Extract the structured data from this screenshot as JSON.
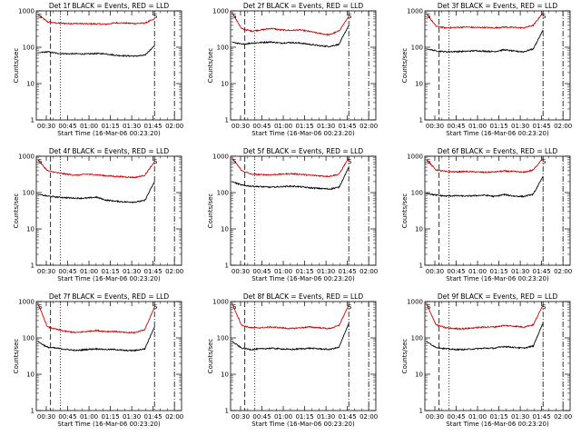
{
  "chart_data": [
    {
      "type": "line",
      "title": "Det 1f BLACK = Events, RED = LLD",
      "xlabel": "Start Time (16-Mar-06 00:23:20)",
      "ylabel": "Counts/sec",
      "yscale": "log",
      "ylim": [
        1,
        1000
      ],
      "x_ticks": [
        "00:30",
        "00:45",
        "01:00",
        "01:15",
        "01:30",
        "01:45",
        "02:00"
      ],
      "y_ticks": [
        "1",
        "10",
        "100",
        "1000"
      ],
      "markers": [
        "S",
        "S"
      ],
      "series": [
        {
          "color": "#d40000",
          "x_range": [
            "00:24",
            "01:46"
          ],
          "values": [
            800,
            500,
            460,
            450,
            450,
            440,
            440,
            430,
            470,
            460,
            450,
            460,
            600
          ]
        },
        {
          "color": "#000000",
          "x_range": [
            "00:24",
            "01:46"
          ],
          "values": [
            70,
            75,
            68,
            66,
            66,
            65,
            67,
            66,
            60,
            58,
            57,
            60,
            110
          ]
        }
      ]
    },
    {
      "type": "line",
      "title": "Det 2f BLACK = Events, RED = LLD",
      "xlabel": "Start Time (16-Mar-06 00:23:20)",
      "ylabel": "Counts/sec",
      "yscale": "log",
      "ylim": [
        1,
        1000
      ],
      "x_ticks": [
        "00:30",
        "00:45",
        "01:00",
        "01:15",
        "01:30",
        "01:45",
        "02:00"
      ],
      "y_ticks": [
        "1",
        "10",
        "100",
        "1000"
      ],
      "markers": [
        "S",
        "S"
      ],
      "series": [
        {
          "color": "#d40000",
          "x_range": [
            "00:24",
            "01:46"
          ],
          "values": [
            900,
            320,
            280,
            300,
            330,
            300,
            290,
            300,
            270,
            240,
            220,
            280,
            700
          ]
        },
        {
          "color": "#000000",
          "x_range": [
            "00:24",
            "01:46"
          ],
          "values": [
            140,
            120,
            130,
            135,
            140,
            130,
            135,
            130,
            120,
            110,
            105,
            120,
            400
          ]
        }
      ]
    },
    {
      "type": "line",
      "title": "Det 3f BLACK = Events, RED = LLD",
      "xlabel": "Start Time (16-Mar-06 00:23:20)",
      "ylabel": "Counts/sec",
      "yscale": "log",
      "ylim": [
        1,
        1000
      ],
      "x_ticks": [
        "00:30",
        "00:45",
        "01:00",
        "01:15",
        "01:30",
        "01:45",
        "02:00"
      ],
      "y_ticks": [
        "1",
        "10",
        "100",
        "1000"
      ],
      "markers": [
        "S",
        "S"
      ],
      "series": [
        {
          "color": "#d40000",
          "x_range": [
            "00:24",
            "01:46"
          ],
          "values": [
            850,
            380,
            340,
            350,
            360,
            350,
            350,
            340,
            360,
            350,
            340,
            400,
            900
          ]
        },
        {
          "color": "#000000",
          "x_range": [
            "00:24",
            "01:46"
          ],
          "values": [
            90,
            80,
            75,
            76,
            77,
            80,
            78,
            76,
            85,
            78,
            75,
            90,
            300
          ]
        }
      ]
    },
    {
      "type": "line",
      "title": "Det 4f BLACK = Events, RED = LLD",
      "xlabel": "Start Time (16-Mar-06 00:23:20)",
      "ylabel": "Counts/sec",
      "yscale": "log",
      "ylim": [
        1,
        1000
      ],
      "x_ticks": [
        "00:30",
        "00:45",
        "01:00",
        "01:15",
        "01:30",
        "01:45",
        "02:00"
      ],
      "y_ticks": [
        "1",
        "10",
        "100",
        "1000"
      ],
      "markers": [
        "S",
        "S"
      ],
      "series": [
        {
          "color": "#d40000",
          "x_range": [
            "00:24",
            "01:46"
          ],
          "values": [
            800,
            400,
            350,
            320,
            300,
            320,
            310,
            290,
            280,
            270,
            260,
            300,
            700
          ]
        },
        {
          "color": "#000000",
          "x_range": [
            "00:24",
            "01:46"
          ],
          "values": [
            90,
            80,
            75,
            72,
            70,
            70,
            75,
            62,
            58,
            55,
            55,
            60,
            200
          ]
        }
      ]
    },
    {
      "type": "line",
      "title": "Det 5f BLACK = Events, RED = LLD",
      "xlabel": "Start Time (16-Mar-06 00:23:20)",
      "ylabel": "Counts/sec",
      "yscale": "log",
      "ylim": [
        1,
        1000
      ],
      "x_ticks": [
        "00:30",
        "00:45",
        "01:00",
        "01:15",
        "01:30",
        "01:45",
        "02:00"
      ],
      "y_ticks": [
        "1",
        "10",
        "100",
        "1000"
      ],
      "markers": [
        "S",
        "S"
      ],
      "series": [
        {
          "color": "#d40000",
          "x_range": [
            "00:24",
            "01:46"
          ],
          "values": [
            900,
            400,
            320,
            310,
            310,
            320,
            330,
            320,
            300,
            290,
            280,
            320,
            900
          ]
        },
        {
          "color": "#000000",
          "x_range": [
            "00:24",
            "01:46"
          ],
          "values": [
            200,
            160,
            150,
            145,
            140,
            145,
            150,
            145,
            135,
            130,
            125,
            140,
            500
          ]
        }
      ]
    },
    {
      "type": "line",
      "title": "Det 6f BLACK = Events, RED = LLD",
      "xlabel": "Start Time (16-Mar-06 00:23:20)",
      "ylabel": "Counts/sec",
      "yscale": "log",
      "ylim": [
        1,
        1000
      ],
      "x_ticks": [
        "00:30",
        "00:45",
        "01:00",
        "01:15",
        "01:30",
        "01:45",
        "02:00"
      ],
      "y_ticks": [
        "1",
        "10",
        "100",
        "1000"
      ],
      "markers": [
        "S",
        "S"
      ],
      "series": [
        {
          "color": "#d40000",
          "x_range": [
            "00:24",
            "01:46"
          ],
          "values": [
            800,
            420,
            380,
            370,
            380,
            370,
            360,
            370,
            390,
            380,
            360,
            420,
            900
          ]
        },
        {
          "color": "#000000",
          "x_range": [
            "00:24",
            "01:46"
          ],
          "values": [
            95,
            85,
            80,
            82,
            80,
            82,
            85,
            78,
            88,
            80,
            78,
            90,
            280
          ]
        }
      ]
    },
    {
      "type": "line",
      "title": "Det 7f BLACK = Events, RED = LLD",
      "xlabel": "Start Time (16-Mar-06 00:23:20)",
      "ylabel": "Counts/sec",
      "yscale": "log",
      "ylim": [
        1,
        1000
      ],
      "x_ticks": [
        "00:30",
        "00:45",
        "01:00",
        "01:15",
        "01:30",
        "01:45",
        "02:00"
      ],
      "y_ticks": [
        "1",
        "10",
        "100",
        "1000"
      ],
      "markers": [
        "S",
        "S"
      ],
      "series": [
        {
          "color": "#d40000",
          "x_range": [
            "00:24",
            "01:46"
          ],
          "values": [
            900,
            200,
            170,
            150,
            140,
            150,
            160,
            150,
            150,
            140,
            140,
            170,
            700
          ]
        },
        {
          "color": "#000000",
          "x_range": [
            "00:24",
            "01:46"
          ],
          "values": [
            80,
            55,
            52,
            48,
            45,
            48,
            50,
            48,
            48,
            45,
            45,
            50,
            200
          ]
        }
      ]
    },
    {
      "type": "line",
      "title": "Det 8f BLACK = Events, RED = LLD",
      "xlabel": "Start Time (16-Mar-06 00:23:20)",
      "ylabel": "Counts/sec",
      "yscale": "log",
      "ylim": [
        1,
        1000
      ],
      "x_ticks": [
        "00:30",
        "00:45",
        "01:00",
        "01:15",
        "01:30",
        "01:45",
        "02:00"
      ],
      "y_ticks": [
        "1",
        "10",
        "100",
        "1000"
      ],
      "markers": [
        "S",
        "S"
      ],
      "series": [
        {
          "color": "#d40000",
          "x_range": [
            "00:24",
            "01:46"
          ],
          "values": [
            900,
            220,
            190,
            190,
            200,
            190,
            180,
            190,
            200,
            190,
            180,
            220,
            800
          ]
        },
        {
          "color": "#000000",
          "x_range": [
            "00:24",
            "01:46"
          ],
          "values": [
            80,
            52,
            48,
            50,
            52,
            50,
            48,
            50,
            52,
            50,
            48,
            55,
            250
          ]
        }
      ]
    },
    {
      "type": "line",
      "title": "Det 9f BLACK = Events, RED = LLD",
      "xlabel": "Start Time (16-Mar-06 00:23:20)",
      "ylabel": "Counts/sec",
      "yscale": "log",
      "ylim": [
        1,
        1000
      ],
      "x_ticks": [
        "00:30",
        "00:45",
        "01:00",
        "01:15",
        "01:30",
        "01:45",
        "02:00"
      ],
      "y_ticks": [
        "1",
        "10",
        "100",
        "1000"
      ],
      "markers": [
        "S",
        "S"
      ],
      "series": [
        {
          "color": "#d40000",
          "x_range": [
            "00:24",
            "01:46"
          ],
          "values": [
            900,
            230,
            190,
            180,
            180,
            190,
            200,
            200,
            220,
            210,
            200,
            230,
            800
          ]
        },
        {
          "color": "#000000",
          "x_range": [
            "00:24",
            "01:46"
          ],
          "values": [
            80,
            55,
            50,
            48,
            48,
            50,
            52,
            52,
            58,
            55,
            52,
            60,
            260
          ]
        }
      ]
    }
  ]
}
